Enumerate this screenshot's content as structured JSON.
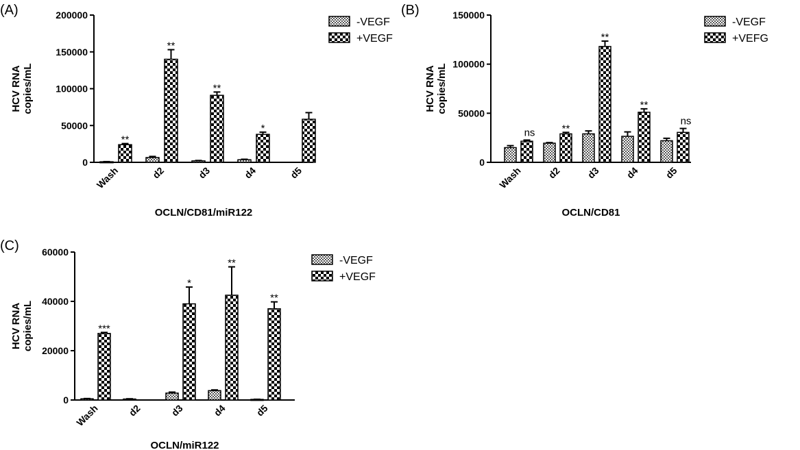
{
  "chart_data": [
    {
      "type": "bar",
      "panel": "(A)",
      "xlabel": "OCLN/CD81/miR122",
      "ylabel": "HCV RNA copies/mL",
      "ylim": [
        0,
        200000
      ],
      "yticks": [
        "0",
        "50000",
        "100000",
        "150000",
        "200000"
      ],
      "categories": [
        "Wash",
        "d2",
        "d3",
        "d4",
        "d5"
      ],
      "legend_position": "top-right",
      "series": [
        {
          "name": "-VEGF",
          "pattern": "fine",
          "values": [
            800,
            6500,
            2000,
            3500,
            0
          ],
          "errors": [
            200,
            1500,
            500,
            700,
            0
          ]
        },
        {
          "name": "+VEGF",
          "pattern": "coarse",
          "values": [
            24000,
            140000,
            91000,
            38000,
            58500
          ],
          "errors": [
            1500,
            13000,
            4500,
            3000,
            9000
          ]
        }
      ],
      "annotations": [
        {
          "series": 1,
          "index": 0,
          "text": "**"
        },
        {
          "series": 1,
          "index": 1,
          "text": "**"
        },
        {
          "series": 1,
          "index": 2,
          "text": "**"
        },
        {
          "series": 1,
          "index": 3,
          "text": "*"
        }
      ]
    },
    {
      "type": "bar",
      "panel": "(B)",
      "xlabel": "OCLN/CD81",
      "ylabel": "HCV RNA copies/mL",
      "ylim": [
        0,
        150000
      ],
      "yticks": [
        "0",
        "50000",
        "100000",
        "150000"
      ],
      "categories": [
        "Wash",
        "d2",
        "d3",
        "d4",
        "d5"
      ],
      "legend_position": "top-right",
      "series": [
        {
          "name": "-VEGF",
          "pattern": "fine",
          "values": [
            15000,
            19500,
            29000,
            26500,
            22000
          ],
          "errors": [
            2000,
            600,
            3000,
            4500,
            2500
          ]
        },
        {
          "name": "+VEFG",
          "pattern": "coarse",
          "values": [
            21500,
            29000,
            118000,
            51000,
            30500
          ],
          "errors": [
            1200,
            1500,
            5500,
            3500,
            4000
          ]
        }
      ],
      "annotations": [
        {
          "series": 1,
          "index": 0,
          "text": "ns"
        },
        {
          "series": 1,
          "index": 1,
          "text": "**"
        },
        {
          "series": 1,
          "index": 2,
          "text": "**"
        },
        {
          "series": 1,
          "index": 3,
          "text": "**"
        },
        {
          "series": 1,
          "index": 4,
          "text": "ns"
        }
      ]
    },
    {
      "type": "bar",
      "panel": "(C)",
      "xlabel": "OCLN/miR122",
      "ylabel": "HCV RNA copies/mL",
      "ylim": [
        0,
        60000
      ],
      "yticks": [
        "0",
        "20000",
        "40000",
        "60000"
      ],
      "categories": [
        "Wash",
        "d2",
        "d3",
        "d4",
        "d5"
      ],
      "legend_position": "top-right",
      "series": [
        {
          "name": "-VEGF",
          "pattern": "fine",
          "values": [
            500,
            400,
            2800,
            3800,
            250
          ],
          "errors": [
            100,
            100,
            400,
            300,
            50
          ]
        },
        {
          "name": "+VEGF",
          "pattern": "coarse",
          "values": [
            27000,
            0,
            39000,
            42500,
            37000
          ],
          "errors": [
            400,
            0,
            6800,
            11500,
            2800
          ]
        }
      ],
      "annotations": [
        {
          "series": 1,
          "index": 0,
          "text": "***"
        },
        {
          "series": 1,
          "index": 2,
          "text": "*"
        },
        {
          "series": 1,
          "index": 3,
          "text": "**"
        },
        {
          "series": 1,
          "index": 4,
          "text": "**"
        }
      ]
    }
  ]
}
